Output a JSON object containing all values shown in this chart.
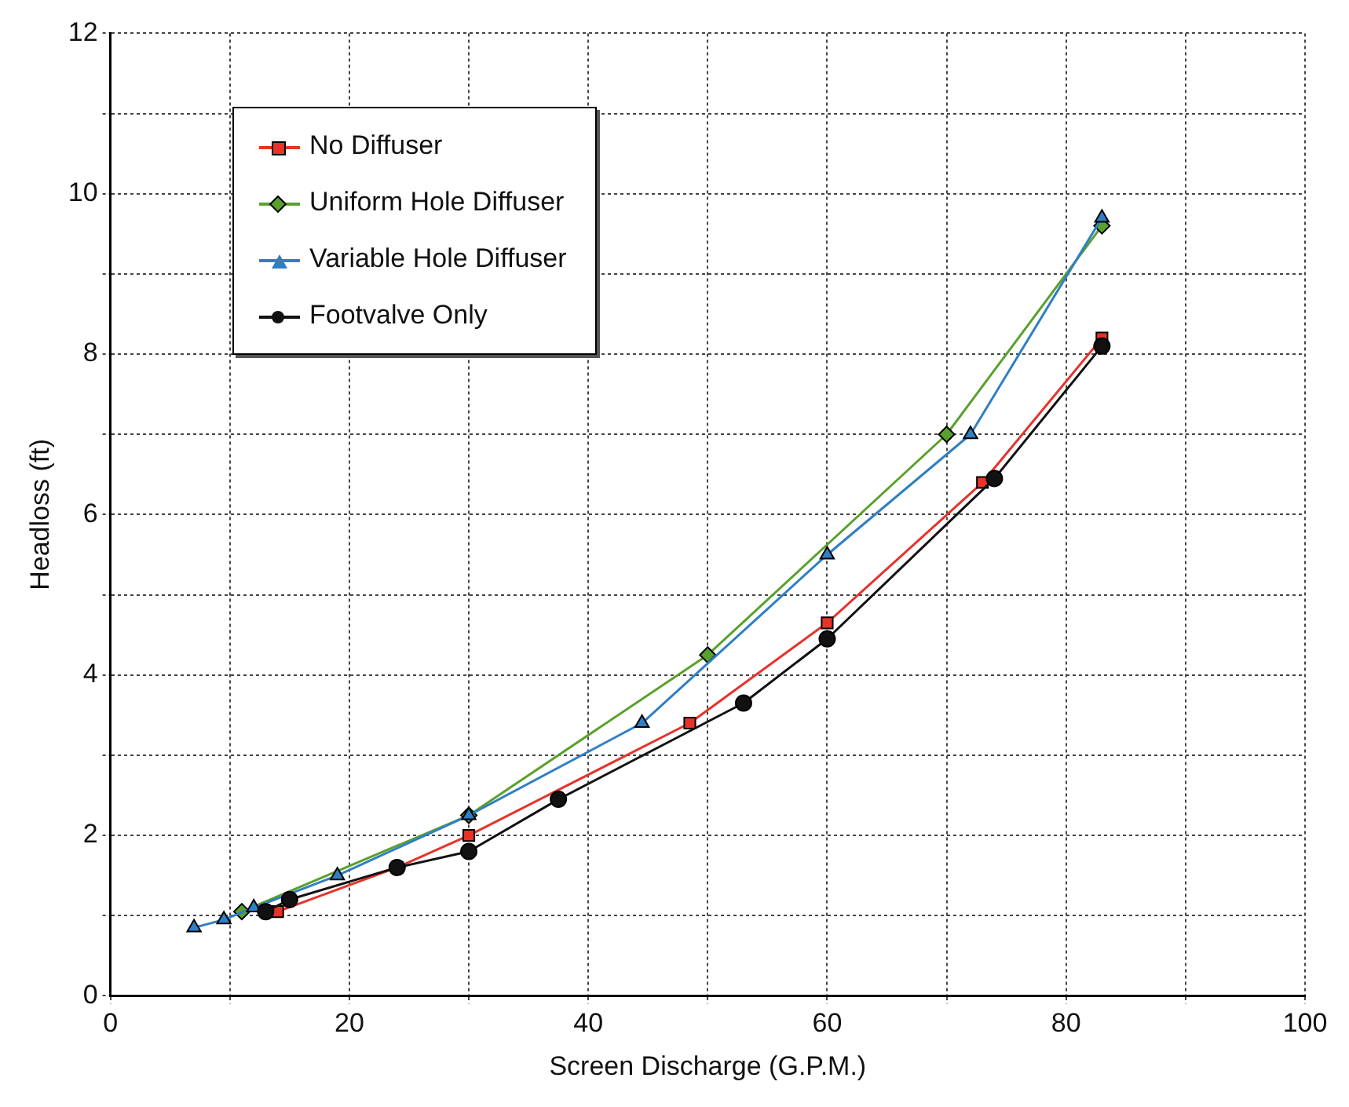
{
  "chart_data": {
    "type": "line",
    "xlabel": "Screen Discharge (G.P.M.)",
    "ylabel": "Headloss (ft)",
    "xlim": [
      0,
      100
    ],
    "ylim": [
      0,
      12
    ],
    "xticks": [
      0,
      {
        "value": 10,
        "label": null
      },
      20,
      {
        "value": 30,
        "label": null
      },
      40,
      {
        "value": 50,
        "label": null
      },
      60,
      {
        "value": 70,
        "label": null
      },
      80,
      {
        "value": 90,
        "label": null
      },
      100
    ],
    "yticks": [
      0,
      {
        "value": 1,
        "label": null
      },
      2,
      {
        "value": 3,
        "label": null
      },
      4,
      {
        "value": 5,
        "label": null
      },
      6,
      {
        "value": 7,
        "label": null
      },
      8,
      {
        "value": 9,
        "label": null
      },
      10,
      {
        "value": 11,
        "label": null
      },
      12
    ],
    "grid": true,
    "legend": "top left",
    "line_style": "solid",
    "series": [
      {
        "name": "No Diffuser",
        "color": "#e8322a",
        "marker": "square",
        "x": [
          14,
          24,
          30,
          48.5,
          60,
          73,
          83
        ],
        "values": [
          1.05,
          1.6,
          2.0,
          3.4,
          4.65,
          6.4,
          8.2
        ]
      },
      {
        "name": "Uniform Hole Diffuser",
        "color": "#5aa02c",
        "marker": "diamond",
        "x": [
          11,
          30,
          50,
          70,
          83
        ],
        "values": [
          1.05,
          2.25,
          4.25,
          7.0,
          9.6
        ]
      },
      {
        "name": "Variable Hole Diffuser",
        "color": "#2f7fc4",
        "marker": "triangle",
        "x": [
          7,
          9.5,
          12,
          19,
          30,
          44.5,
          60,
          72,
          83
        ],
        "values": [
          0.85,
          0.95,
          1.1,
          1.5,
          2.25,
          3.4,
          5.5,
          7.0,
          9.7
        ]
      },
      {
        "name": "Footvalve Only",
        "color": "#111111",
        "marker": "circle",
        "x": [
          13,
          15,
          24,
          30,
          37.5,
          53,
          60,
          74,
          83
        ],
        "values": [
          1.05,
          1.2,
          1.6,
          1.8,
          2.45,
          3.65,
          4.45,
          6.45,
          8.1
        ]
      }
    ]
  }
}
